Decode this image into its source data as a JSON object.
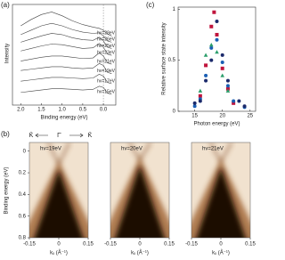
{
  "chart_data": [
    {
      "type": "line",
      "panel_label": "(a)",
      "ylabel": "Intensity",
      "xlabel": "Binding energy (eV)",
      "xlim": [
        2.2,
        -0.3
      ],
      "ylim": [
        0,
        16
      ],
      "xticks": [
        {
          "value": 2,
          "label": "2.0"
        },
        {
          "value": 1.5,
          "label": "1.5"
        },
        {
          "value": 1,
          "label": "1.0"
        },
        0.5,
        {
          "value": 0,
          "label": "0.0"
        }
      ],
      "x": [
        2.0,
        1.75,
        1.5,
        1.25,
        1.0,
        0.75,
        0.5,
        0.25,
        0.1,
        0.0,
        -0.1,
        -0.2
      ],
      "series": [
        {
          "name": "hν=28eV",
          "color": "#444444",
          "values": [
            12.6,
            13.6,
            14.4,
            14.8,
            14.2,
            13.4,
            12.8,
            12.4,
            12.2,
            11.9,
            11.3,
            11.0
          ]
        },
        {
          "name": "hν=26eV",
          "color": "#444444",
          "values": [
            11.2,
            11.9,
            12.6,
            13.0,
            12.6,
            12.0,
            11.6,
            11.4,
            11.5,
            11.0,
            10.2,
            10.0
          ]
        },
        {
          "name": "hν=25eV",
          "color": "#444444",
          "values": [
            10.0,
            10.5,
            11.0,
            11.4,
            11.2,
            10.7,
            10.4,
            10.3,
            10.8,
            10.2,
            9.2,
            9.0
          ]
        },
        {
          "name": "hν=23eV",
          "color": "#444444",
          "values": [
            8.6,
            9.0,
            9.4,
            9.7,
            9.6,
            9.3,
            9.0,
            9.1,
            9.8,
            9.2,
            8.1,
            7.9
          ]
        },
        {
          "name": "hν=21eV",
          "color": "#444444",
          "values": [
            7.0,
            7.3,
            7.6,
            7.8,
            7.8,
            7.6,
            7.4,
            7.5,
            8.3,
            7.8,
            6.7,
            6.5
          ]
        },
        {
          "name": "hν=19eV",
          "color": "#444444",
          "values": [
            5.5,
            5.7,
            5.9,
            6.1,
            6.1,
            5.9,
            5.8,
            5.9,
            6.6,
            6.3,
            5.2,
            5.0
          ]
        },
        {
          "name": "hν=17eV",
          "color": "#444444",
          "values": [
            3.8,
            4.0,
            4.2,
            4.4,
            4.4,
            4.3,
            4.2,
            4.3,
            4.9,
            4.6,
            3.6,
            3.4
          ]
        },
        {
          "name": "hν=15eV",
          "color": "#444444",
          "values": [
            2.0,
            2.2,
            2.4,
            2.6,
            2.6,
            2.5,
            2.4,
            2.5,
            3.0,
            2.8,
            1.9,
            1.7
          ]
        }
      ]
    },
    {
      "type": "scatter",
      "panel_label": "(c)",
      "ylabel": "Relative surface state intensity",
      "xlabel": "Photon energy (eV)",
      "xlim": [
        12,
        26
      ],
      "ylim": [
        0,
        1.02
      ],
      "xticks": [
        15,
        20,
        25
      ],
      "yticks": [
        0,
        0.5,
        1
      ],
      "series": [
        {
          "color": "#c0143c",
          "marker": "square",
          "x": [
            16,
            17,
            18,
            18.5,
            19,
            20,
            21,
            22
          ],
          "values": [
            0.15,
            0.45,
            0.83,
            0.97,
            0.75,
            0.42,
            0.22,
            0.08
          ]
        },
        {
          "color": "#1a5fb4",
          "marker": "circle",
          "x": [
            15,
            16,
            17,
            18,
            19,
            20,
            21,
            22,
            24
          ],
          "values": [
            0.05,
            0.12,
            0.35,
            0.62,
            0.7,
            0.48,
            0.25,
            0.1,
            0.04
          ]
        },
        {
          "color": "#2a9d6a",
          "marker": "triangle",
          "x": [
            16,
            17,
            18,
            19,
            20,
            21
          ],
          "values": [
            0.2,
            0.55,
            0.65,
            0.58,
            0.35,
            0.2
          ]
        },
        {
          "color": "#1b2a6b",
          "marker": "circle",
          "x": [
            15,
            16,
            17,
            18,
            19,
            20,
            21,
            23,
            24
          ],
          "values": [
            0.08,
            0.1,
            0.3,
            0.5,
            0.88,
            0.55,
            0.3,
            0.1,
            0.05
          ]
        }
      ]
    },
    {
      "type": "image",
      "panel_label": "(b)",
      "ylabel": "Binding energy (eV)",
      "xlabel": "kₓ (Å⁻¹)",
      "xlim": [
        -0.15,
        0.15
      ],
      "ylim": [
        -0.08,
        0.8
      ],
      "xticks": [
        -0.15,
        0,
        0.15
      ],
      "yticks": [
        0,
        0.2,
        0.4,
        0.6,
        0.8
      ],
      "direction_labels": [
        "K̄",
        "Γ̄",
        "K̄"
      ],
      "panels": [
        {
          "title": "hν=19eV"
        },
        {
          "title": "hν=20eV"
        },
        {
          "title": "hν=21eV"
        }
      ]
    }
  ]
}
